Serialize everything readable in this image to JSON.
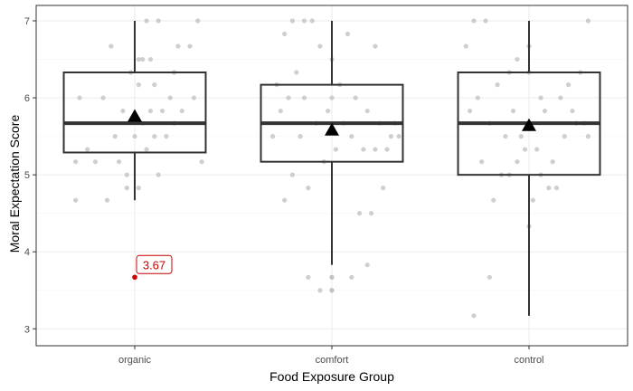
{
  "chart_data": {
    "type": "boxplot",
    "xlabel": "Food Exposure Group",
    "ylabel": "Moral Expectation Score",
    "categories": [
      "organic",
      "comfort",
      "control"
    ],
    "ylim": [
      3,
      7
    ],
    "yticks": [
      "3",
      "4",
      "5",
      "6",
      "7"
    ],
    "grid": true,
    "boxes": [
      {
        "group": "organic",
        "whisker_low": 4.67,
        "q1": 5.29,
        "median": 5.67,
        "q3": 6.33,
        "whisker_high": 7.0,
        "mean": 5.76
      },
      {
        "group": "comfort",
        "whisker_low": 3.83,
        "q1": 5.17,
        "median": 5.67,
        "q3": 6.17,
        "whisker_high": 7.0,
        "mean": 5.58
      },
      {
        "group": "control",
        "whisker_low": 3.17,
        "q1": 5.0,
        "median": 5.67,
        "q3": 6.33,
        "whisker_high": 7.0,
        "mean": 5.64
      }
    ],
    "points": {
      "organic": [
        [
          -0.3,
          5.17
        ],
        [
          -0.28,
          6.0
        ],
        [
          -0.24,
          5.33
        ],
        [
          -0.2,
          5.17
        ],
        [
          -0.16,
          6.0
        ],
        [
          -0.14,
          4.67
        ],
        [
          -0.12,
          6.67
        ],
        [
          -0.1,
          5.5
        ],
        [
          -0.08,
          5.17
        ],
        [
          -0.06,
          5.83
        ],
        [
          -0.04,
          5.0
        ],
        [
          -0.02,
          6.33
        ],
        [
          0.0,
          5.5
        ],
        [
          0.02,
          6.5
        ],
        [
          0.02,
          6.17
        ],
        [
          0.04,
          5.67
        ],
        [
          0.04,
          6.5
        ],
        [
          0.06,
          7.0
        ],
        [
          0.06,
          5.33
        ],
        [
          0.08,
          5.83
        ],
        [
          0.08,
          6.5
        ],
        [
          0.1,
          5.5
        ],
        [
          0.1,
          6.17
        ],
        [
          0.12,
          7.0
        ],
        [
          0.12,
          5.0
        ],
        [
          0.14,
          5.83
        ],
        [
          0.16,
          5.5
        ],
        [
          0.18,
          6.0
        ],
        [
          0.2,
          6.33
        ],
        [
          0.22,
          6.67
        ],
        [
          0.24,
          5.83
        ],
        [
          0.28,
          6.67
        ],
        [
          0.3,
          6.0
        ],
        [
          0.32,
          7.0
        ],
        [
          0.34,
          5.17
        ],
        [
          0.2,
          5.67
        ],
        [
          -0.04,
          4.83
        ],
        [
          0.02,
          4.83
        ],
        [
          -0.3,
          4.67
        ]
      ],
      "comfort": [
        [
          -0.3,
          5.5
        ],
        [
          -0.28,
          6.17
        ],
        [
          -0.26,
          5.83
        ],
        [
          -0.24,
          4.67
        ],
        [
          -0.22,
          6.0
        ],
        [
          -0.2,
          5.0
        ],
        [
          -0.18,
          6.33
        ],
        [
          -0.16,
          5.5
        ],
        [
          -0.14,
          6.0
        ],
        [
          -0.12,
          4.83
        ],
        [
          -0.1,
          7.0
        ],
        [
          -0.08,
          5.67
        ],
        [
          -0.06,
          6.67
        ],
        [
          -0.04,
          5.17
        ],
        [
          -0.02,
          5.83
        ],
        [
          0.0,
          6.5
        ],
        [
          0.0,
          6.0
        ],
        [
          0.02,
          5.33
        ],
        [
          0.04,
          6.17
        ],
        [
          0.06,
          5.67
        ],
        [
          0.08,
          6.83
        ],
        [
          0.1,
          5.5
        ],
        [
          0.12,
          6.0
        ],
        [
          0.14,
          4.5
        ],
        [
          0.16,
          5.33
        ],
        [
          0.18,
          5.83
        ],
        [
          0.2,
          4.5
        ],
        [
          0.22,
          5.33
        ],
        [
          0.24,
          5.67
        ],
        [
          0.26,
          4.83
        ],
        [
          0.28,
          5.33
        ],
        [
          0.3,
          5.5
        ],
        [
          0.32,
          5.67
        ],
        [
          0.34,
          5.5
        ],
        [
          0.22,
          6.67
        ],
        [
          -0.2,
          7.0
        ],
        [
          -0.14,
          7.0
        ],
        [
          0.0,
          3.67
        ],
        [
          0.0,
          3.67
        ],
        [
          0.0,
          3.5
        ],
        [
          0.0,
          3.5
        ],
        [
          -0.06,
          3.5
        ],
        [
          0.1,
          3.67
        ],
        [
          0.18,
          3.83
        ],
        [
          -0.12,
          3.67
        ],
        [
          -0.24,
          6.83
        ]
      ],
      "control": [
        [
          -0.32,
          6.67
        ],
        [
          -0.3,
          5.83
        ],
        [
          -0.28,
          7.0
        ],
        [
          -0.26,
          6.0
        ],
        [
          -0.24,
          5.17
        ],
        [
          -0.22,
          7.0
        ],
        [
          -0.2,
          5.67
        ],
        [
          -0.18,
          4.67
        ],
        [
          -0.16,
          6.17
        ],
        [
          -0.14,
          5.0
        ],
        [
          -0.12,
          5.5
        ],
        [
          -0.1,
          6.33
        ],
        [
          -0.08,
          5.83
        ],
        [
          -0.06,
          6.5
        ],
        [
          -0.04,
          5.5
        ],
        [
          -0.02,
          5.33
        ],
        [
          0.0,
          6.67
        ],
        [
          0.0,
          6.33
        ],
        [
          0.02,
          4.67
        ],
        [
          0.04,
          5.33
        ],
        [
          0.06,
          5.0
        ],
        [
          0.06,
          6.0
        ],
        [
          0.08,
          5.83
        ],
        [
          0.1,
          4.83
        ],
        [
          0.12,
          5.17
        ],
        [
          0.14,
          4.83
        ],
        [
          0.16,
          6.0
        ],
        [
          0.18,
          5.5
        ],
        [
          0.2,
          6.17
        ],
        [
          0.22,
          5.83
        ],
        [
          0.24,
          5.67
        ],
        [
          0.26,
          6.33
        ],
        [
          0.28,
          5.67
        ],
        [
          0.3,
          5.5
        ],
        [
          0.3,
          7.0
        ],
        [
          -0.06,
          5.17
        ],
        [
          -0.1,
          5.0
        ],
        [
          -0.2,
          3.67
        ],
        [
          0.0,
          4.33
        ],
        [
          -0.28,
          3.17
        ]
      ]
    },
    "highlighted_point": {
      "group": "organic",
      "offset": 0.0,
      "value": 3.67,
      "label": "3.67",
      "color": "#cc0000"
    },
    "colors": {
      "box_line": "#333333",
      "point": "#bfbfbf",
      "grid": "#ebebeb",
      "panel_border": "#333333",
      "mean_marker": "#000000"
    }
  }
}
